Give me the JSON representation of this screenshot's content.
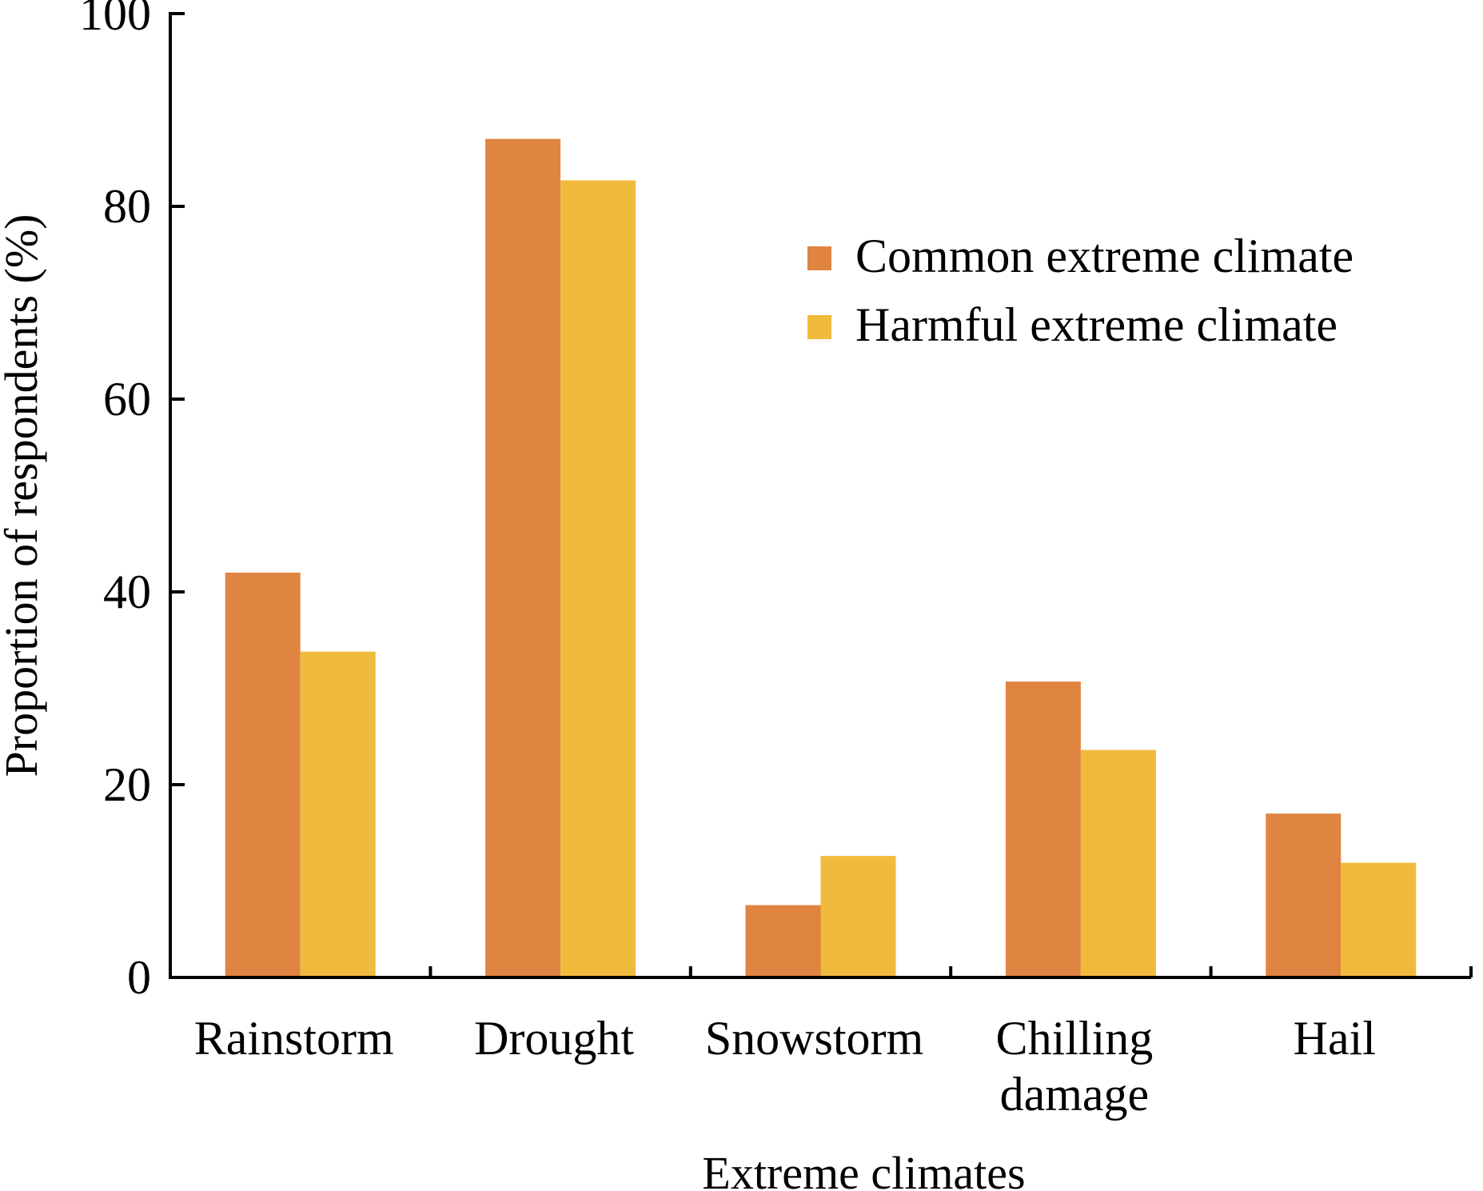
{
  "chart_data": {
    "type": "bar",
    "title": "",
    "xlabel": "Extreme climates",
    "ylabel": "Proportion of respondents (%)",
    "ylim": [
      0,
      100
    ],
    "yticks": [
      0,
      20,
      40,
      60,
      80,
      100
    ],
    "grid": false,
    "legend_position": "top-right",
    "categories": [
      [
        "Rainstorm"
      ],
      [
        "Drought"
      ],
      [
        "Snowstorm"
      ],
      [
        "Chilling",
        "damage"
      ],
      [
        "Hail"
      ]
    ],
    "series": [
      {
        "name": "Common extreme climate",
        "color": "#E08442",
        "values": [
          42,
          87,
          7.5,
          30.7,
          17
        ]
      },
      {
        "name": "Harmful extreme climate",
        "color": "#F0BA3C",
        "values": [
          33.8,
          82.7,
          12.6,
          23.6,
          11.9
        ]
      }
    ]
  }
}
